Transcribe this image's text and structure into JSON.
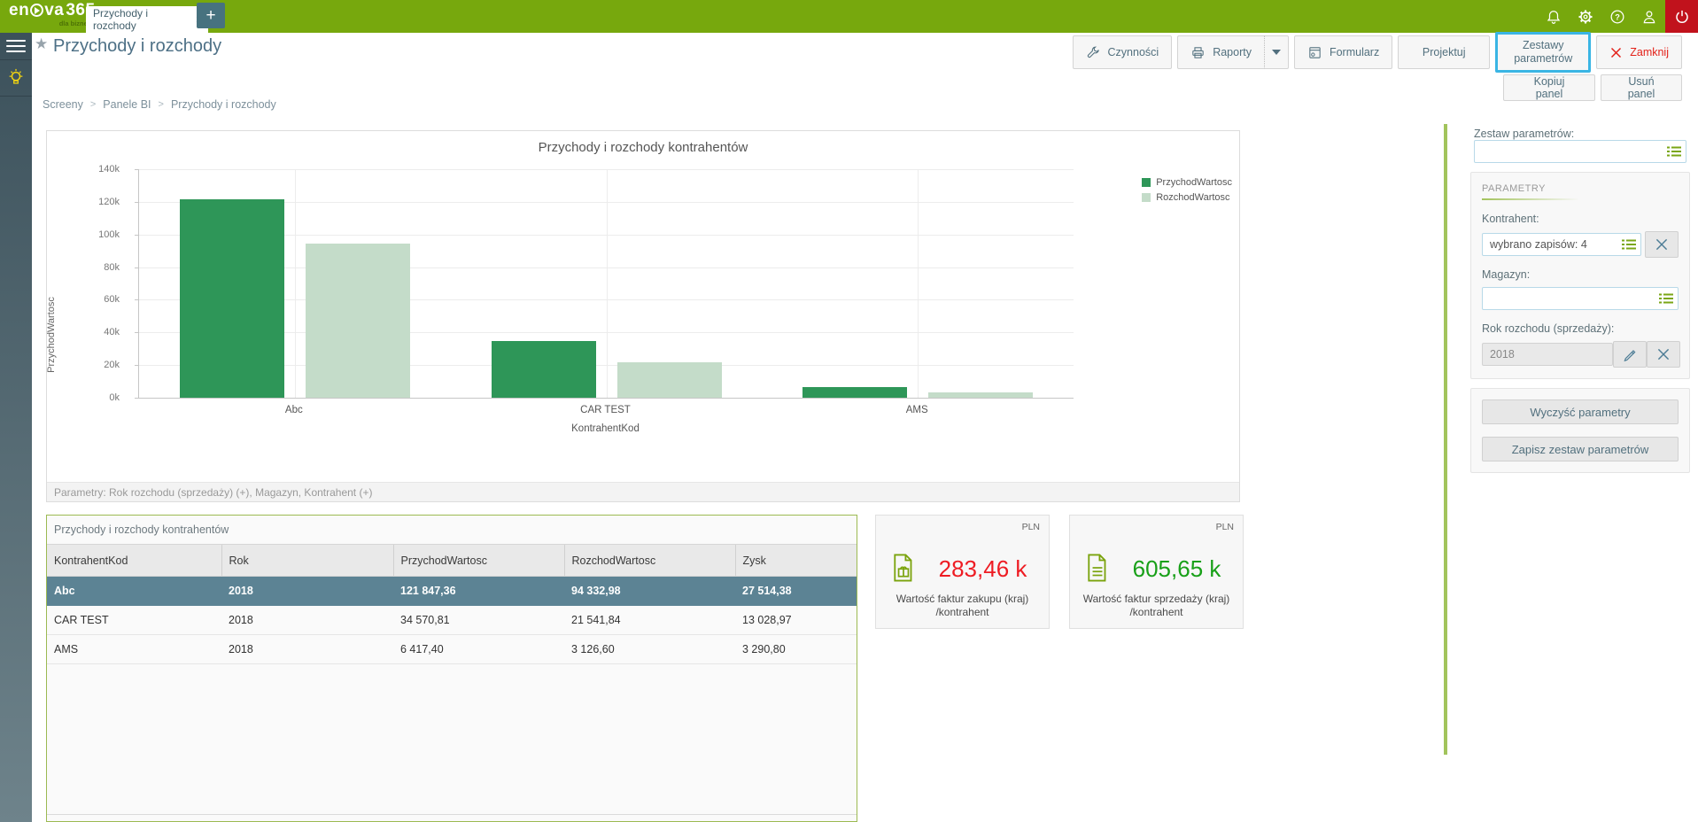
{
  "topbar": {
    "logo": {
      "brand_a": "en",
      "brand_b": "va",
      "brand_num": "365",
      "tagline": "dla biznesu"
    },
    "tab": {
      "label": "Przychody i rozchody",
      "close": "x"
    },
    "new_tab": "+",
    "icons": [
      "bell-icon",
      "gear-icon",
      "help-icon",
      "user-icon",
      "power-icon"
    ]
  },
  "header": {
    "title": "Przychody i rozchody",
    "star_icon": "★"
  },
  "toolbar": {
    "czynnosci": "Czynności",
    "raporty": "Raporty",
    "formularz": "Formularz",
    "projektuj": "Projektuj",
    "zestawy_parametrow": "Zestawy parametrów",
    "zamknij": "Zamknij",
    "kopiuj_panel": "Kopiuj panel",
    "usun_panel": "Usuń panel"
  },
  "breadcrumb": {
    "items": [
      "Screeny",
      "Panele BI",
      "Przychody i rozchody"
    ],
    "separator": ">"
  },
  "chart_data": {
    "type": "bar",
    "title": "Przychody i rozchody kontrahentów",
    "categories": [
      "Abc",
      "CAR TEST",
      "AMS"
    ],
    "series": [
      {
        "name": "PrzychodWartosc",
        "color": "#2e9658",
        "values": [
          121847.36,
          34570.81,
          6417.4
        ]
      },
      {
        "name": "RozchodWartosc",
        "color": "#c4dcc9",
        "values": [
          94332.98,
          21541.84,
          3126.6
        ]
      }
    ],
    "xlabel": "KontrahentKod",
    "ylabel": "PrzychodWartosc",
    "ylim": [
      0,
      140000
    ],
    "ytick_labels": [
      "0k",
      "20k",
      "40k",
      "60k",
      "80k",
      "100k",
      "120k",
      "140k"
    ],
    "grid": true,
    "legend_position": "right"
  },
  "params_note": "Parametry: Rok rozchodu (sprzedaży) (+), Magazyn, Kontrahent (+)",
  "table": {
    "title": "Przychody i rozchody kontrahentów",
    "columns": [
      "KontrahentKod",
      "Rok",
      "PrzychodWartosc",
      "RozchodWartosc",
      "Zysk"
    ],
    "rows": [
      [
        "Abc",
        "2018",
        "121 847,36",
        "94 332,98",
        "27 514,38"
      ],
      [
        "CAR TEST",
        "2018",
        "34 570,81",
        "21 541,84",
        "13 028,97"
      ],
      [
        "AMS",
        "2018",
        "6 417,40",
        "3 126,60",
        "3 290,80"
      ]
    ],
    "selected_row": 0
  },
  "kpis": [
    {
      "currency": "PLN",
      "value": "283,46 k",
      "color": "#ee1c23",
      "label": "Wartość faktur zakupu (kraj) /kontrahent",
      "icon": "purchase-invoice-icon"
    },
    {
      "currency": "PLN",
      "value": "605,65 k",
      "color": "#18a018",
      "label": "Wartość faktur sprzedaży (kraj) /kontrahent",
      "icon": "sales-invoice-icon"
    }
  ],
  "sidebar": {
    "set_label": "Zestaw parametrów:",
    "set_value": "",
    "section_title": "PARAMETRY",
    "kontrahent_label": "Kontrahent:",
    "kontrahent_value": "wybrano zapisów: 4",
    "magazyn_label": "Magazyn:",
    "magazyn_value": "",
    "rok_label": "Rok rozchodu (sprzedaży):",
    "rok_value": "2018",
    "clear_button": "Wyczyść parametry",
    "save_button": "Zapisz zestaw parametrów"
  }
}
